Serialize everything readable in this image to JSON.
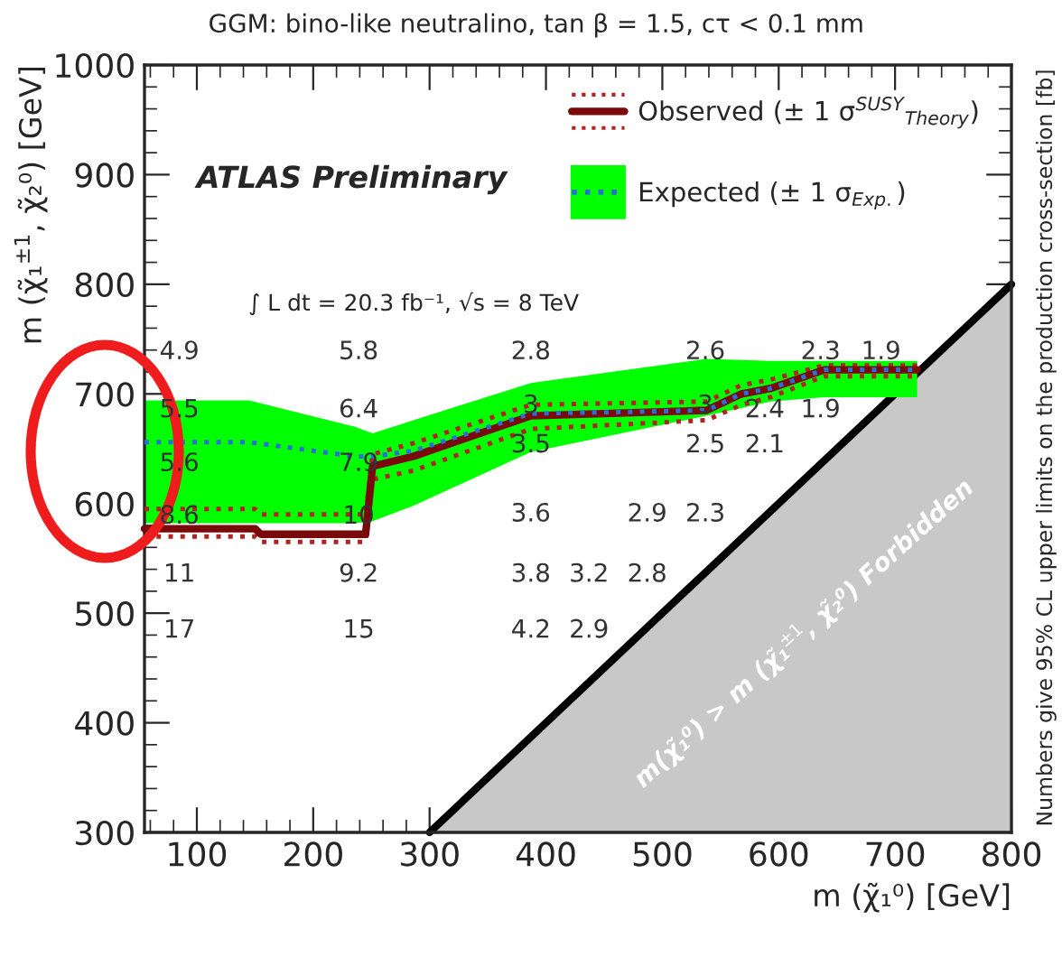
{
  "chart_data": {
    "type": "line",
    "title": "GGM: bino-like neutralino, tan β = 1.5, cτ < 0.1 mm",
    "xlabel": "m (χ̃₁⁰) [GeV]",
    "ylabel": "m (χ̃₁$^{±1}$, χ̃₂⁰) [GeV]",
    "xlim": [
      55,
      800
    ],
    "xticks": [
      100,
      200,
      300,
      400,
      500,
      600,
      700,
      800
    ],
    "ylim": [
      300,
      1000
    ],
    "yticks": [
      300,
      400,
      500,
      600,
      700,
      800,
      900,
      1000
    ],
    "legend": "top right",
    "series": [
      {
        "type": "area",
        "color": "#c8c8c8",
        "x": [
          300,
          800
        ],
        "values": [
          300,
          800
        ]
      },
      {
        "name": "Expected (± 1 σ$_{Exp.}$)",
        "color": "#2a6fd6",
        "line_style": "dotted",
        "x": [
          55,
          145,
          236,
          251,
          286,
          387,
          538,
          568,
          593,
          639,
          719
        ],
        "values": [
          656,
          656,
          643,
          643,
          648,
          682,
          685,
          700,
          705,
          722,
          722
        ],
        "lower": [
          582,
          582,
          582,
          584,
          598,
          647,
          680,
          687,
          693,
          697,
          697
        ],
        "upper": [
          694,
          694,
          670,
          664,
          676,
          710,
          732,
          731,
          730,
          730,
          730
        ]
      },
      {
        "color": "#b22222",
        "line_style": "dotted",
        "x": [
          55,
          150,
          155,
          245,
          251,
          286,
          387,
          538,
          568,
          593,
          639,
          719
        ],
        "values": [
          595,
          595,
          590,
          590,
          645,
          655,
          690,
          693,
          708,
          713,
          726,
          726
        ]
      },
      {
        "color": "#b22222",
        "line_style": "dotted",
        "x": [
          55,
          150,
          155,
          245,
          251,
          286,
          387,
          538,
          568,
          593,
          639,
          719
        ],
        "values": [
          570,
          570,
          565,
          565,
          622,
          630,
          668,
          676,
          690,
          697,
          716,
          716
        ]
      },
      {
        "name": "Observed (± 1 σ$^{SUSY}$$_{Theory}$)",
        "color": "#7a0a0a",
        "line_style": "solid",
        "x": [
          55,
          150,
          155,
          245,
          251,
          286,
          387,
          538,
          568,
          593,
          639,
          719
        ],
        "values": [
          577,
          577,
          572,
          572,
          634,
          643,
          680,
          685,
          700,
          705,
          722,
          722
        ]
      }
    ],
    "annotations": [
      "ATLAS Preliminary",
      "∫ L dt = 20.3 fb⁻¹, √s = 8 TeV",
      "Numbers give 95% CL upper limits on the production cross-section [fb]",
      "m(χ̃₁⁰) > m (χ̃₁$^{±1}$, χ̃₂⁰) Forbidden",
      "4.9",
      "5.5",
      "5.6",
      "8.6",
      "11",
      "17",
      "5.8",
      "6.4",
      "7.9",
      "10",
      "9.2",
      "15",
      "2.8",
      "3",
      "3.5",
      "3.6",
      "3.8",
      "4.2",
      "3.2",
      "2.9",
      "2.9",
      "2.8",
      "2.6",
      "3",
      "2.5",
      "2.3",
      "2.4",
      "2.1",
      "2.3",
      "1.9",
      "1.9"
    ]
  }
}
